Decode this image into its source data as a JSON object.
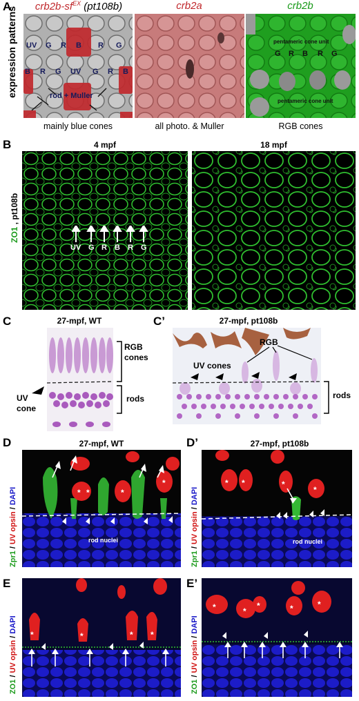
{
  "panel_letters": {
    "a": "A",
    "b": "B",
    "c": "C",
    "c2": "C’",
    "d": "D",
    "d2": "D’",
    "e": "E",
    "e2": "E’"
  },
  "row_a": {
    "side_label": "expression patterns",
    "title1_main": "crb2b-sf",
    "title1_sup": "EX",
    "title1_extra": " (pt108b)",
    "title2": "crb2a",
    "title3": "crb2b",
    "caption1": "mainly blue cones",
    "caption2": "all photo. & Muller",
    "caption3": "RGB cones",
    "labels_row1": [
      "UV",
      "G",
      "R",
      "B",
      "R",
      "G"
    ],
    "labels_row2": [
      "B",
      "R",
      "G",
      "UV",
      "G",
      "R",
      "B"
    ],
    "rod_muller": "rod + Muller",
    "green_row": [
      "G",
      "R",
      "B",
      "R",
      "G"
    ],
    "pentameric": "pentameric cone unit",
    "colors": {
      "red": "#c0282c",
      "green": "#1a9a1a"
    }
  },
  "row_b": {
    "header_left": "4 mpf",
    "header_right": "18 mpf",
    "side_label_green": "ZO1",
    "side_label_sep": " , ",
    "side_label_black": "pt108b",
    "arrow_labels": [
      "UV",
      "G",
      "R",
      "B",
      "R",
      "G"
    ]
  },
  "row_c": {
    "title_left": "27-mpf, WT",
    "title_right": "27-mpf, pt108b",
    "rgb_cones_line1": "RGB",
    "rgb_cones_line2": "cones",
    "rods": "rods",
    "uv_cone_line1": "UV",
    "uv_cone_line2": "cone",
    "uv_cones": "UV cones",
    "rgb": "RGB"
  },
  "row_d": {
    "title_left": "27-mpf, WT",
    "title_right": "27-mpf, pt108b",
    "side_green": "Zpr1",
    "side_red": "UV opsin",
    "side_blue": "DAPI",
    "sep": " / ",
    "rod_nuclei": "rod nuclei"
  },
  "row_e": {
    "side_green": "ZO1",
    "side_red": "UV opsin",
    "side_blue": "DAPI",
    "sep": " / "
  }
}
